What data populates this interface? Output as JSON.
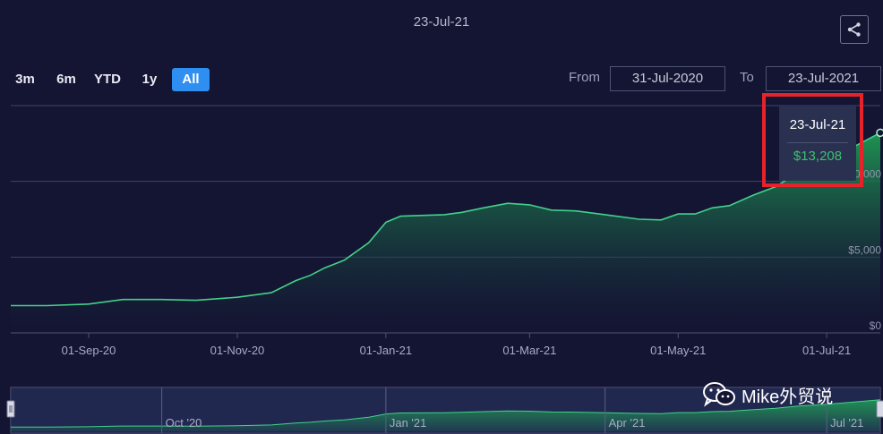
{
  "header": {
    "title": "23-Jul-21",
    "share_icon": "share-icon"
  },
  "range_selector": {
    "buttons": [
      {
        "label": "3m"
      },
      {
        "label": "6m"
      },
      {
        "label": "YTD"
      },
      {
        "label": "1y"
      },
      {
        "label": "All"
      }
    ],
    "active": "All"
  },
  "date_range": {
    "from_label": "From",
    "from_value": "31-Jul-2020",
    "to_label": "To",
    "to_value": "23-Jul-2021"
  },
  "tooltip": {
    "date": "23-Jul-21",
    "value": "$13,208"
  },
  "watermark": {
    "icon": "wechat-icon",
    "text": "Mike外贸说"
  },
  "colors": {
    "background": "#141433",
    "line": "#43d18a",
    "fill_top": "#1f9a55",
    "tooltip_value": "#39c26b",
    "highlight": "#e8222b",
    "active_button": "#2e8ff0"
  },
  "chart_data": {
    "type": "area",
    "title": "",
    "x_unit": "date",
    "xlim": [
      "2020-07-31",
      "2021-07-23"
    ],
    "ylim": [
      0,
      15000
    ],
    "y_ticks": [
      {
        "value": 0,
        "label": "$0"
      },
      {
        "value": 5000,
        "label": "$5,000"
      },
      {
        "value": 10000,
        "label": "$10,000"
      }
    ],
    "x_ticks": [
      {
        "date": "2020-09-01",
        "label": "01-Sep-20"
      },
      {
        "date": "2020-11-01",
        "label": "01-Nov-20"
      },
      {
        "date": "2021-01-01",
        "label": "01-Jan-21"
      },
      {
        "date": "2021-03-01",
        "label": "01-Mar-21"
      },
      {
        "date": "2021-05-01",
        "label": "01-May-21"
      },
      {
        "date": "2021-07-01",
        "label": "01-Jul-21"
      }
    ],
    "grid": true,
    "series": [
      {
        "x": [
          "2020-07-31",
          "2020-08-15",
          "2020-09-01",
          "2020-09-15",
          "2020-10-01",
          "2020-10-15",
          "2020-11-01",
          "2020-11-15",
          "2020-11-25",
          "2020-12-01",
          "2020-12-07",
          "2020-12-15",
          "2020-12-25",
          "2021-01-01",
          "2021-01-07",
          "2021-01-15",
          "2021-01-25",
          "2021-02-01",
          "2021-02-10",
          "2021-02-20",
          "2021-03-01",
          "2021-03-10",
          "2021-03-20",
          "2021-04-01",
          "2021-04-15",
          "2021-04-24",
          "2021-05-01",
          "2021-05-08",
          "2021-05-15",
          "2021-05-22",
          "2021-06-01",
          "2021-06-10",
          "2021-06-20",
          "2021-07-01",
          "2021-07-10",
          "2021-07-23"
        ],
        "y": [
          1800,
          1800,
          1900,
          2200,
          2200,
          2150,
          2350,
          2650,
          3450,
          3800,
          4300,
          4800,
          5950,
          7300,
          7700,
          7750,
          7800,
          7950,
          8250,
          8550,
          8450,
          8100,
          8050,
          7800,
          7500,
          7450,
          7850,
          7850,
          8250,
          8400,
          9100,
          9650,
          10650,
          11350,
          12100,
          13208
        ]
      }
    ],
    "navigator": {
      "labels": [
        {
          "date": "2020-10-01",
          "label": "Oct '20"
        },
        {
          "date": "2021-01-01",
          "label": "Jan '21"
        },
        {
          "date": "2021-04-01",
          "label": "Apr '21"
        },
        {
          "date": "2021-07-01",
          "label": "Jul '21"
        }
      ]
    }
  }
}
